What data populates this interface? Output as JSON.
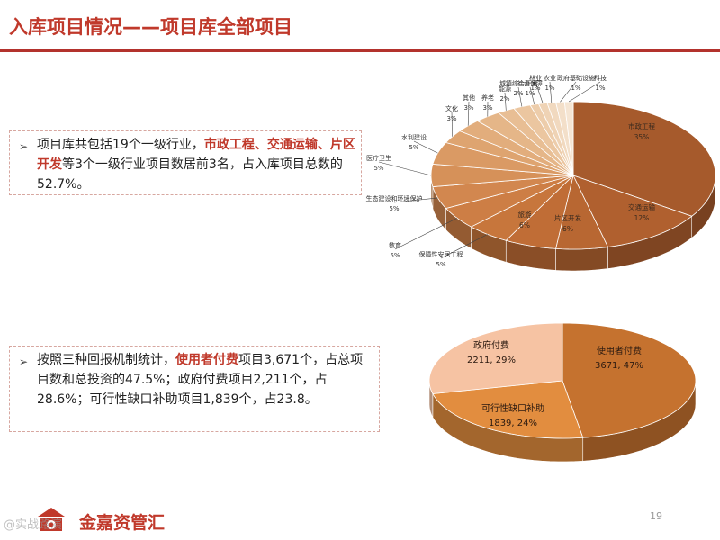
{
  "header": {
    "title": "入库项目情况——项目库全部项目"
  },
  "bullets": [
    {
      "parts": [
        {
          "text": "项目库共包括19个一级行业，",
          "hl": false
        },
        {
          "text": "市政工程、交通运输、片区开发",
          "hl": true
        },
        {
          "text": "等3个一级行业项目数居前3名，占入库项目总数的52.7%。",
          "hl": false
        }
      ]
    },
    {
      "parts": [
        {
          "text": "按照三种回报机制统计，",
          "hl": false
        },
        {
          "text": "使用者付费",
          "hl": true
        },
        {
          "text": "项目3,671个，占总项目数和总投资的47.5%；政府付费项目2,211个，占28.6%；可行性缺口补助项目1,839个，占23.8。",
          "hl": false
        }
      ]
    }
  ],
  "chart_data": [
    {
      "type": "pie",
      "slices": [
        {
          "label": "市政工程",
          "value": 35,
          "pct": "35%",
          "color": "#a65a2c"
        },
        {
          "label": "交通运输",
          "value": 12,
          "pct": "12%",
          "color": "#b0602f"
        },
        {
          "label": "片区开发",
          "value": 6,
          "pct": "6%",
          "color": "#b86732"
        },
        {
          "label": "旅游",
          "value": 6,
          "pct": "6%",
          "color": "#c06d36"
        },
        {
          "label": "保障性安居工程",
          "value": 5,
          "pct": "5%",
          "color": "#c7763c"
        },
        {
          "label": "教育",
          "value": 5,
          "pct": "5%",
          "color": "#cd7e45"
        },
        {
          "label": "生态建设和环境保护",
          "value": 5,
          "pct": "5%",
          "color": "#d2874f"
        },
        {
          "label": "医疗卫生",
          "value": 5,
          "pct": "5%",
          "color": "#d69159"
        },
        {
          "label": "水利建设",
          "value": 5,
          "pct": "5%",
          "color": "#da9a64"
        },
        {
          "label": "文化",
          "value": 3,
          "pct": "3%",
          "color": "#dea470"
        },
        {
          "label": "其他",
          "value": 3,
          "pct": "3%",
          "color": "#e2ad7c"
        },
        {
          "label": "养老",
          "value": 3,
          "pct": "3%",
          "color": "#e5b688"
        },
        {
          "label": "能源",
          "value": 2,
          "pct": "2%",
          "color": "#e8be94"
        },
        {
          "label": "城镇综合开发",
          "value": 2,
          "pct": "2%",
          "color": "#ebc6a0"
        },
        {
          "label": "社会保障",
          "value": 1,
          "pct": "1%",
          "color": "#edcdab"
        },
        {
          "label": "林业",
          "value": 1,
          "pct": "1%",
          "color": "#efd3b5"
        },
        {
          "label": "农业",
          "value": 1,
          "pct": "1%",
          "color": "#f1d9bf"
        },
        {
          "label": "政府基础设施",
          "value": 1,
          "pct": "1%",
          "color": "#f3dfc9"
        },
        {
          "label": "科技",
          "value": 1,
          "pct": "1%",
          "color": "#f5e5d3"
        }
      ]
    },
    {
      "type": "pie",
      "slices": [
        {
          "label": "使用者付费",
          "value": 3671,
          "pct": "47%",
          "color": "#c5722f"
        },
        {
          "label": "可行性缺口补助",
          "value": 1839,
          "pct": "24%",
          "color": "#e28d3f"
        },
        {
          "label": "政府付费",
          "value": 2211,
          "pct": "29%",
          "color": "#f6c3a3"
        }
      ]
    }
  ],
  "footer": {
    "company": "金嘉资管汇",
    "page": "19",
    "watermark": "@实战路演"
  }
}
